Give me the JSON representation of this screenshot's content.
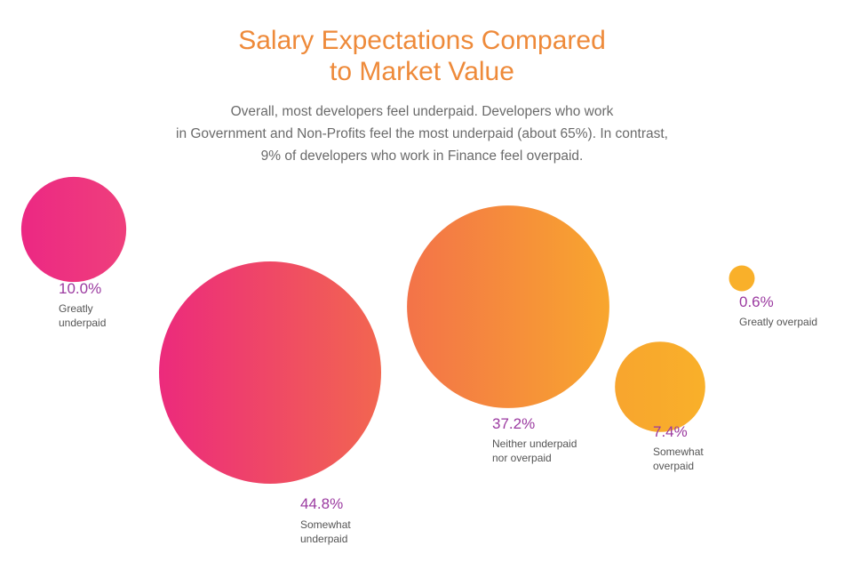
{
  "header": {
    "title_lines": [
      "Salary Expectations Compared",
      "to Market Value"
    ],
    "subtitle_lines": [
      "Overall, most developers feel underpaid. Developers who work",
      "in Government and Non-Profits feel the most underpaid (about 65%). In contrast,",
      "9% of developers who work in Finance feel overpaid."
    ]
  },
  "chart_data": {
    "type": "bubble",
    "title": "Salary Expectations Compared to Market Value",
    "unit": "%",
    "categories": [
      {
        "key": "greatly-underpaid",
        "label_lines": [
          "Greatly",
          "underpaid"
        ],
        "value": 10.0,
        "display": "10.0%"
      },
      {
        "key": "somewhat-underpaid",
        "label_lines": [
          "Somewhat",
          "underpaid"
        ],
        "value": 44.8,
        "display": "44.8%"
      },
      {
        "key": "neither",
        "label_lines": [
          "Neither underpaid",
          "nor overpaid"
        ],
        "value": 37.2,
        "display": "37.2%"
      },
      {
        "key": "somewhat-overpaid",
        "label_lines": [
          "Somewhat",
          "overpaid"
        ],
        "value": 7.4,
        "display": "7.4%"
      },
      {
        "key": "greatly-overpaid",
        "label_lines": [
          "Greatly overpaid"
        ],
        "value": 0.6,
        "display": "0.6%"
      }
    ],
    "colors": {
      "pink": "#ec2883",
      "coral": "#f1654f",
      "orange": "#f5863a",
      "amber": "#f8a82d",
      "value_text": "#9b3aa0",
      "label_text": "#555555"
    }
  }
}
